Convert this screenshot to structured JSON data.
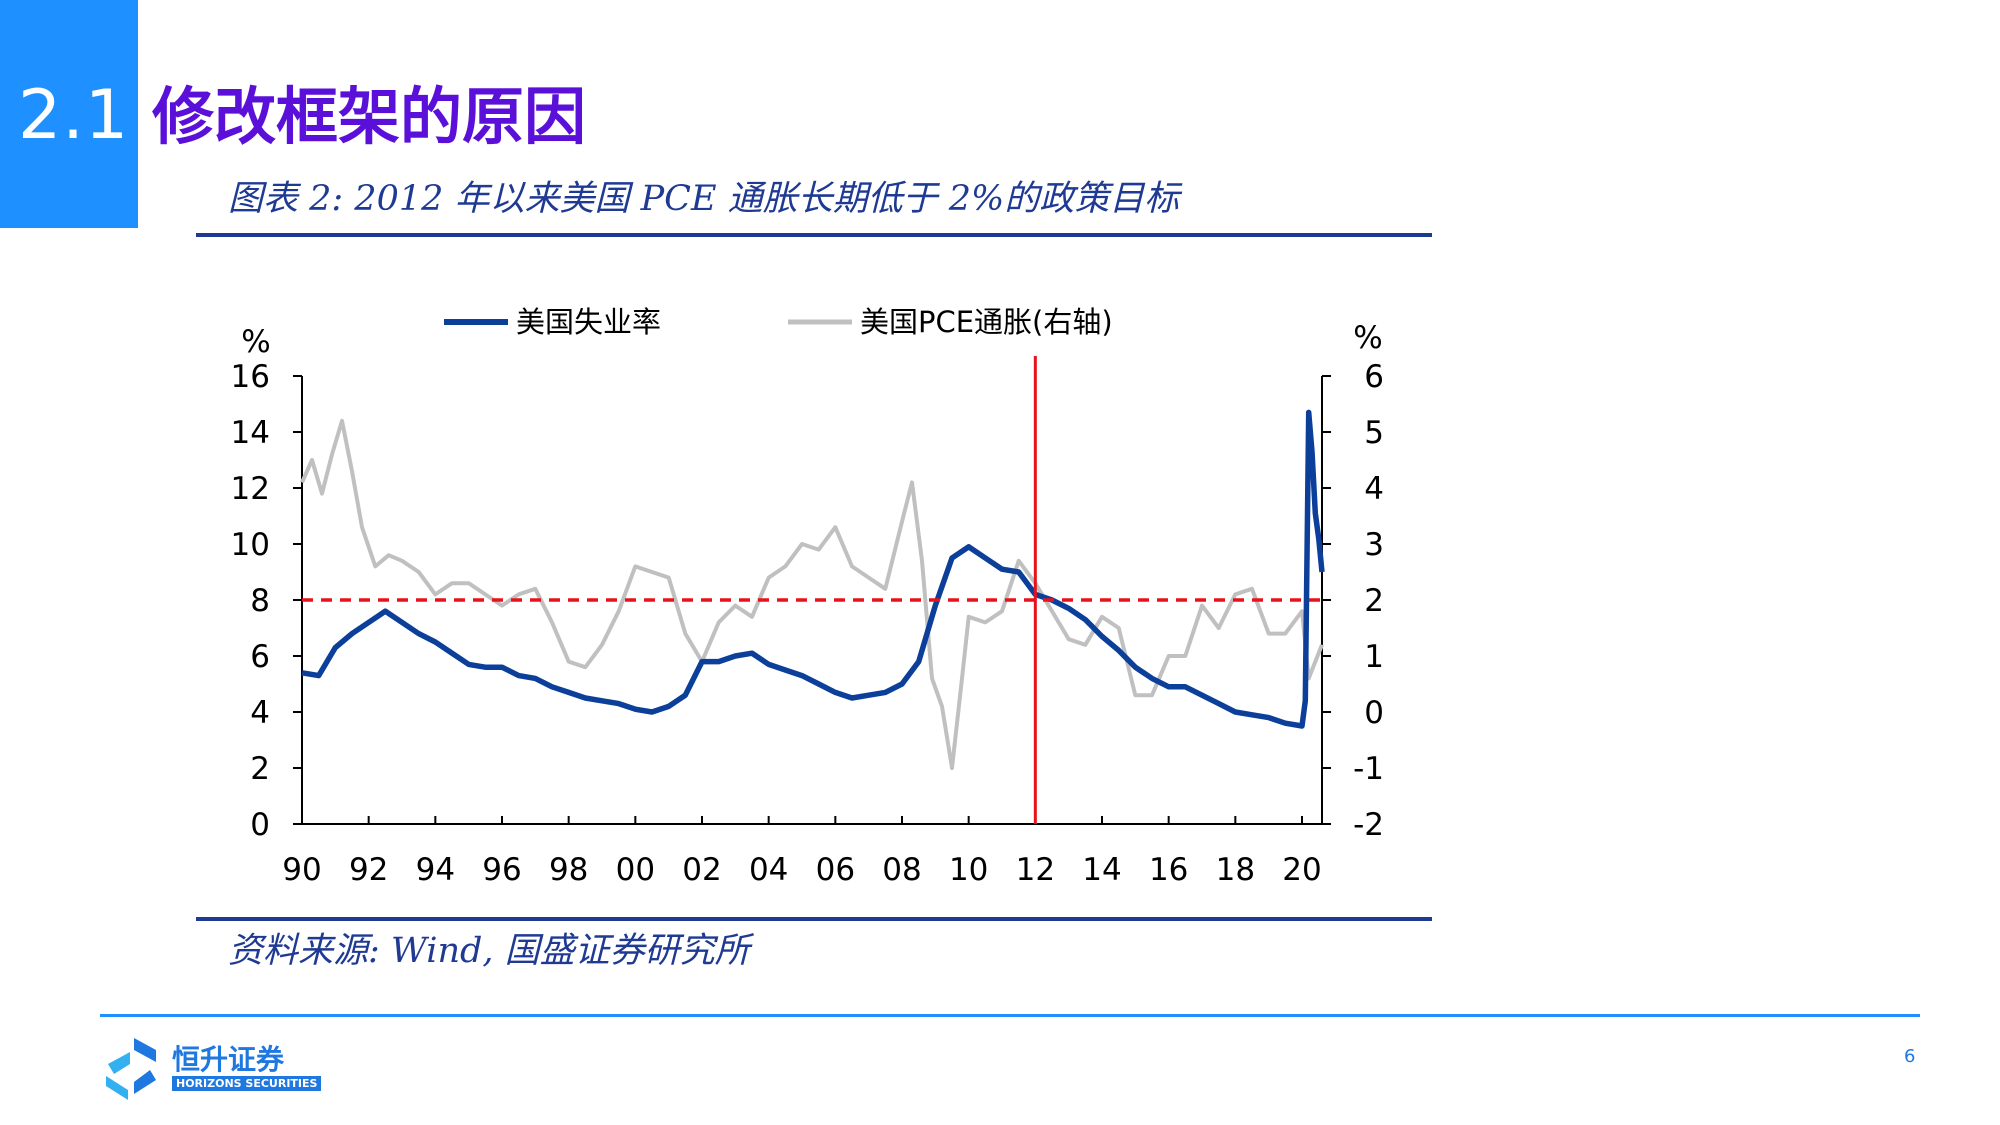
{
  "header": {
    "section_number": "2.1",
    "title": "修改框架的原因"
  },
  "figure": {
    "title": "图表 2:  2012 年以来美国 PCE 通胀长期低于 2%的政策目标",
    "source": "资料来源:  Wind,  国盛证券研究所"
  },
  "footer": {
    "logo_cn": "恒升证券",
    "logo_en": "HORIZONS SECURITIES",
    "page_number": "6"
  },
  "colors": {
    "accent": "#1e90ff",
    "title": "#5a10d8",
    "navy": "#1f3a93",
    "unemployment": "#0b3f99",
    "pce": "#c0c0c0",
    "reference": "#e8121a"
  },
  "chart_data": {
    "type": "line",
    "left_unit": "%",
    "right_unit": "%",
    "x_ticks": [
      "90",
      "92",
      "94",
      "96",
      "98",
      "00",
      "02",
      "04",
      "06",
      "08",
      "10",
      "12",
      "14",
      "16",
      "18",
      "20"
    ],
    "y_left_ticks": [
      "0",
      "2",
      "4",
      "6",
      "8",
      "10",
      "12",
      "14",
      "16"
    ],
    "y_right_ticks": [
      "-2",
      "-1",
      "0",
      "1",
      "2",
      "3",
      "4",
      "5",
      "6"
    ],
    "xlim": [
      1990,
      2020.6
    ],
    "ylim_left": [
      0,
      16
    ],
    "ylim_right": [
      -2,
      6
    ],
    "reference_lines": {
      "vertical_x": 2012,
      "horizontal_right_y": 2
    },
    "series": [
      {
        "name": "美国失业率",
        "axis": "left",
        "x": [
          1990.0,
          1990.5,
          1991.0,
          1991.5,
          1992.0,
          1992.5,
          1993.0,
          1993.5,
          1994.0,
          1994.5,
          1995.0,
          1995.5,
          1996.0,
          1996.5,
          1997.0,
          1997.5,
          1998.0,
          1998.5,
          1999.0,
          1999.5,
          2000.0,
          2000.5,
          2001.0,
          2001.5,
          2002.0,
          2002.5,
          2003.0,
          2003.5,
          2004.0,
          2004.5,
          2005.0,
          2005.5,
          2006.0,
          2006.5,
          2007.0,
          2007.5,
          2008.0,
          2008.5,
          2009.0,
          2009.5,
          2010.0,
          2010.5,
          2011.0,
          2011.5,
          2012.0,
          2012.5,
          2013.0,
          2013.5,
          2014.0,
          2014.5,
          2015.0,
          2015.5,
          2016.0,
          2016.5,
          2017.0,
          2017.5,
          2018.0,
          2018.5,
          2019.0,
          2019.5,
          2020.0,
          2020.1,
          2020.2,
          2020.3,
          2020.4,
          2020.5,
          2020.6
        ],
        "values": [
          5.4,
          5.3,
          6.3,
          6.8,
          7.2,
          7.6,
          7.2,
          6.8,
          6.5,
          6.1,
          5.7,
          5.6,
          5.6,
          5.3,
          5.2,
          4.9,
          4.7,
          4.5,
          4.4,
          4.3,
          4.1,
          4.0,
          4.2,
          4.6,
          5.8,
          5.8,
          6.0,
          6.1,
          5.7,
          5.5,
          5.3,
          5.0,
          4.7,
          4.5,
          4.6,
          4.7,
          5.0,
          5.8,
          7.8,
          9.5,
          9.9,
          9.5,
          9.1,
          9.0,
          8.2,
          8.0,
          7.7,
          7.3,
          6.7,
          6.2,
          5.6,
          5.2,
          4.9,
          4.9,
          4.6,
          4.3,
          4.0,
          3.9,
          3.8,
          3.6,
          3.5,
          4.4,
          14.7,
          13.3,
          11.1,
          10.2,
          9.0
        ]
      },
      {
        "name": "美国PCE通胀(右轴)",
        "axis": "right",
        "x": [
          1990.0,
          1990.3,
          1990.6,
          1990.9,
          1991.2,
          1991.5,
          1991.8,
          1992.2,
          1992.6,
          1993.0,
          1993.5,
          1994.0,
          1994.5,
          1995.0,
          1995.5,
          1996.0,
          1996.5,
          1997.0,
          1997.5,
          1998.0,
          1998.5,
          1999.0,
          1999.5,
          2000.0,
          2000.5,
          2001.0,
          2001.5,
          2002.0,
          2002.5,
          2003.0,
          2003.5,
          2004.0,
          2004.5,
          2005.0,
          2005.5,
          2006.0,
          2006.5,
          2007.0,
          2007.5,
          2008.0,
          2008.3,
          2008.6,
          2008.9,
          2009.2,
          2009.5,
          2009.8,
          2010.0,
          2010.5,
          2011.0,
          2011.5,
          2012.0,
          2012.5,
          2013.0,
          2013.5,
          2014.0,
          2014.5,
          2015.0,
          2015.5,
          2016.0,
          2016.5,
          2017.0,
          2017.5,
          2018.0,
          2018.5,
          2019.0,
          2019.5,
          2020.0,
          2020.2,
          2020.4,
          2020.6
        ],
        "values": [
          4.1,
          4.5,
          3.9,
          4.6,
          5.2,
          4.3,
          3.3,
          2.6,
          2.8,
          2.7,
          2.5,
          2.1,
          2.3,
          2.3,
          2.1,
          1.9,
          2.1,
          2.2,
          1.6,
          0.9,
          0.8,
          1.2,
          1.8,
          2.6,
          2.5,
          2.4,
          1.4,
          0.9,
          1.6,
          1.9,
          1.7,
          2.4,
          2.6,
          3.0,
          2.9,
          3.3,
          2.6,
          2.4,
          2.2,
          3.4,
          4.1,
          2.7,
          0.6,
          0.1,
          -1.0,
          0.6,
          1.7,
          1.6,
          1.8,
          2.7,
          2.3,
          1.8,
          1.3,
          1.2,
          1.7,
          1.5,
          0.3,
          0.3,
          1.0,
          1.0,
          1.9,
          1.5,
          2.1,
          2.2,
          1.4,
          1.4,
          1.8,
          0.6,
          0.9,
          1.2
        ]
      }
    ]
  }
}
